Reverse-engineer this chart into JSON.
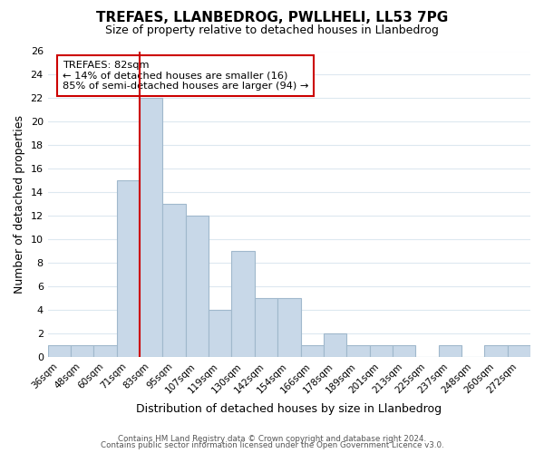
{
  "title": "TREFAES, LLANBEDROG, PWLLHELI, LL53 7PG",
  "subtitle": "Size of property relative to detached houses in Llanbedrog",
  "xlabel": "Distribution of detached houses by size in Llanbedrog",
  "ylabel": "Number of detached properties",
  "bar_color": "#c8d8e8",
  "bar_edge_color": "#a0b8cc",
  "vline_color": "#cc0000",
  "categories": [
    "36sqm",
    "48sqm",
    "60sqm",
    "71sqm",
    "83sqm",
    "95sqm",
    "107sqm",
    "119sqm",
    "130sqm",
    "142sqm",
    "154sqm",
    "166sqm",
    "178sqm",
    "189sqm",
    "201sqm",
    "213sqm",
    "225sqm",
    "237sqm",
    "248sqm",
    "260sqm",
    "272sqm"
  ],
  "values": [
    1,
    1,
    1,
    15,
    22,
    13,
    12,
    4,
    9,
    5,
    5,
    1,
    2,
    1,
    1,
    1,
    0,
    1,
    0,
    1,
    1
  ],
  "vline_index": 3.5,
  "ylim": [
    0,
    26
  ],
  "yticks": [
    0,
    2,
    4,
    6,
    8,
    10,
    12,
    14,
    16,
    18,
    20,
    22,
    24,
    26
  ],
  "annotation_title": "TREFAES: 82sqm",
  "annotation_line1": "← 14% of detached houses are smaller (16)",
  "annotation_line2": "85% of semi-detached houses are larger (94) →",
  "annotation_box_color": "#ffffff",
  "annotation_box_edge": "#cc0000",
  "footer1": "Contains HM Land Registry data © Crown copyright and database right 2024.",
  "footer2": "Contains public sector information licensed under the Open Government Licence v3.0.",
  "background_color": "#ffffff",
  "grid_color": "#dde8f0"
}
